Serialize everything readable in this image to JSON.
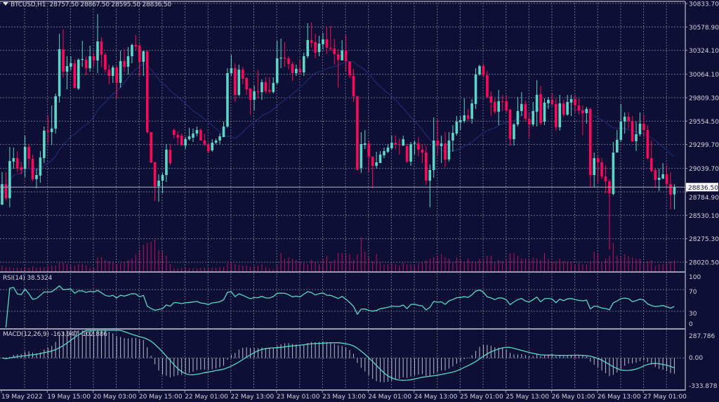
{
  "header": {
    "symbol": "BTCUSD,H1",
    "ohlc_text": "28757.50 28867.50 28595.50 28836.50"
  },
  "indicators": {
    "rsi_label": "RSI(14) 38.5324",
    "macd_label": "MACD(12,26,9) -163.947 -102.886"
  },
  "colors": {
    "background": "#0e0f35",
    "bull": "#5dd6c8",
    "bear": "#ff0a5a",
    "grid": "#6a6d8c",
    "volume": "#c0105a",
    "ma": "#1f2a70",
    "indicator_line": "#5dd6c8",
    "histogram": "#b8bccc",
    "border": "#9a9caf"
  },
  "chart_data": {
    "type": "candlestick",
    "symbol": "BTCUSD",
    "timeframe": "H1",
    "price_axis_ticks": [
      "30833.70",
      "30578.90",
      "30324.10",
      "30064.10",
      "29809.30",
      "29554.50",
      "29299.70",
      "29039.70",
      "28784.90",
      "28530.10",
      "28275.30",
      "28020.50"
    ],
    "current_price": "28836.50",
    "time_axis_labels": [
      "19 May 2022",
      "19 May 15:00",
      "20 May 03:00",
      "20 May 15:00",
      "22 May 01:00",
      "22 May 13:00",
      "23 May 01:00",
      "23 May 13:00",
      "24 May 01:00",
      "24 May 13:00",
      "25 May 01:00",
      "25 May 13:00",
      "26 May 01:00",
      "26 May 13:00",
      "27 May 01:00"
    ],
    "rsi_axis_ticks": [
      "100",
      "70",
      "30",
      "0"
    ],
    "rsi_levels": [
      70,
      30
    ],
    "macd_axis_ticks": [
      "287.786",
      "0.00",
      "-333.878"
    ],
    "macd_range": [
      -333.878,
      287.786
    ],
    "ohlc": [
      [
        28647,
        28999,
        28640,
        28869
      ],
      [
        28869,
        28999,
        28693,
        28716
      ],
      [
        28716,
        29274,
        28617,
        29121
      ],
      [
        29114,
        29267,
        29037,
        29152
      ],
      [
        29152,
        29228,
        28999,
        29037
      ],
      [
        29053,
        29114,
        28976,
        29022
      ],
      [
        29037,
        29397,
        28945,
        29274
      ],
      [
        29274,
        29305,
        29037,
        29144
      ],
      [
        29144,
        29190,
        28900,
        28923
      ],
      [
        28923,
        29037,
        28823,
        28968
      ],
      [
        28961,
        29228,
        28884,
        29159
      ],
      [
        29152,
        29496,
        29098,
        29450
      ],
      [
        29450,
        29611,
        29312,
        29442
      ],
      [
        29435,
        29725,
        29297,
        29473
      ],
      [
        29473,
        29855,
        29419,
        29825
      ],
      [
        29825,
        30505,
        29756,
        30337
      ],
      [
        30337,
        30551,
        30031,
        30092
      ],
      [
        30092,
        30260,
        29901,
        30153
      ],
      [
        30146,
        30260,
        30108,
        30184
      ],
      [
        30184,
        30222,
        29909,
        29916
      ],
      [
        29909,
        30237,
        29893,
        30222
      ],
      [
        30222,
        30429,
        30146,
        30230
      ],
      [
        30222,
        30260,
        30054,
        30130
      ],
      [
        30130,
        30375,
        30092,
        30260
      ],
      [
        30260,
        30299,
        30146,
        30215
      ],
      [
        30215,
        30719,
        30077,
        30421
      ],
      [
        30421,
        30467,
        30146,
        30276
      ],
      [
        30276,
        30299,
        30085,
        30115
      ],
      [
        30115,
        30169,
        29955,
        30046
      ],
      [
        30046,
        30161,
        29970,
        30138
      ],
      [
        30138,
        30153,
        29802,
        29970
      ],
      [
        29970,
        30322,
        29916,
        30207
      ],
      [
        30207,
        30337,
        30092,
        30146
      ],
      [
        30146,
        30360,
        30062,
        30260
      ],
      [
        30260,
        30398,
        30184,
        30383
      ],
      [
        30383,
        30490,
        30322,
        30367
      ],
      [
        30375,
        30398,
        30046,
        30199
      ],
      [
        30199,
        30322,
        30046,
        30314
      ],
      [
        30314,
        30322,
        29419,
        29435
      ],
      [
        29435,
        29435,
        29098,
        29106
      ],
      [
        29106,
        29114,
        28686,
        28846
      ],
      [
        28846,
        28976,
        28678,
        28907
      ],
      [
        28907,
        28991,
        28770,
        28968
      ],
      [
        28968,
        29305,
        28892,
        29244
      ],
      [
        29244,
        29305,
        29075,
        29098
      ],
      [
        29458,
        29473,
        29366,
        29404
      ],
      [
        29404,
        29442,
        29305,
        29374
      ],
      [
        29397,
        29419,
        29282,
        29297
      ],
      [
        29289,
        29381,
        29251,
        29358
      ],
      [
        29358,
        29481,
        29343,
        29389
      ],
      [
        29374,
        29473,
        29328,
        29419
      ],
      [
        29419,
        29496,
        29389,
        29458
      ],
      [
        29458,
        29473,
        29343,
        29343
      ],
      [
        29343,
        29419,
        29282,
        29305
      ],
      [
        29305,
        29320,
        29205,
        29228
      ],
      [
        29236,
        29358,
        29221,
        29320
      ],
      [
        29320,
        29366,
        29305,
        29343
      ],
      [
        29343,
        29419,
        29305,
        29389
      ],
      [
        29381,
        29549,
        29381,
        29496
      ],
      [
        29496,
        30130,
        29481,
        30077
      ],
      [
        30077,
        30276,
        30046,
        30130
      ],
      [
        30130,
        30184,
        29763,
        29840
      ],
      [
        29840,
        30169,
        29825,
        30115
      ],
      [
        30115,
        30146,
        29955,
        30016
      ],
      [
        30023,
        30031,
        29840,
        29901
      ],
      [
        29909,
        29916,
        29626,
        29786
      ],
      [
        29786,
        29939,
        29672,
        29878
      ],
      [
        29878,
        30108,
        29802,
        29870
      ],
      [
        29870,
        30008,
        29786,
        29978
      ],
      [
        29978,
        30031,
        29855,
        29878
      ],
      [
        29893,
        30031,
        29855,
        29878
      ],
      [
        29870,
        30031,
        29855,
        29970
      ],
      [
        29970,
        30429,
        29955,
        30237
      ],
      [
        30237,
        30452,
        30130,
        30245
      ],
      [
        30245,
        30413,
        30146,
        30237
      ],
      [
        30237,
        30260,
        30115,
        30176
      ],
      [
        30176,
        30199,
        29993,
        30077
      ],
      [
        30077,
        30169,
        30046,
        30123
      ],
      [
        30123,
        30222,
        30062,
        30085
      ],
      [
        30085,
        30299,
        30046,
        30260
      ],
      [
        30260,
        30620,
        30237,
        30436
      ],
      [
        30436,
        30627,
        30352,
        30406
      ],
      [
        30413,
        30505,
        30237,
        30299
      ],
      [
        30306,
        30482,
        30260,
        30398
      ],
      [
        30390,
        30513,
        30337,
        30444
      ],
      [
        30444,
        30581,
        30283,
        30352
      ],
      [
        30352,
        30589,
        30322,
        30345
      ],
      [
        30345,
        30452,
        30169,
        30283
      ],
      [
        30283,
        30337,
        29916,
        30222
      ],
      [
        30215,
        30436,
        30215,
        30322
      ],
      [
        30322,
        30490,
        30092,
        30207
      ],
      [
        30199,
        30207,
        30023,
        30054
      ],
      [
        30046,
        30123,
        29763,
        29825
      ],
      [
        29825,
        29832,
        29022,
        29022
      ],
      [
        29045,
        29435,
        28991,
        29305
      ],
      [
        29297,
        29458,
        29251,
        29312
      ],
      [
        29312,
        29343,
        28999,
        29167
      ],
      [
        29167,
        29175,
        28823,
        29068
      ],
      [
        29068,
        29221,
        29037,
        29106
      ],
      [
        29098,
        29228,
        29098,
        29190
      ],
      [
        29182,
        29267,
        29152,
        29228
      ],
      [
        29221,
        29305,
        29205,
        29267
      ],
      [
        29259,
        29397,
        29244,
        29320
      ],
      [
        29320,
        29397,
        29244,
        29305
      ],
      [
        29305,
        29366,
        29190,
        29297
      ],
      [
        29289,
        29397,
        29282,
        29358
      ],
      [
        29282,
        29305,
        29098,
        29114
      ],
      [
        29114,
        29328,
        29068,
        29305
      ],
      [
        29312,
        29343,
        29190,
        29320
      ],
      [
        29312,
        29381,
        29175,
        29244
      ],
      [
        29244,
        29305,
        29098,
        29213
      ],
      [
        29213,
        29282,
        28861,
        28907
      ],
      [
        28907,
        29083,
        28617,
        29022
      ],
      [
        29022,
        29595,
        28938,
        29343
      ],
      [
        29343,
        29572,
        29190,
        29289
      ],
      [
        29282,
        29397,
        29098,
        29312
      ],
      [
        29312,
        29435,
        29053,
        29137
      ],
      [
        29137,
        29435,
        29114,
        29343
      ],
      [
        29343,
        29511,
        29221,
        29427
      ],
      [
        29419,
        29611,
        29397,
        29549
      ],
      [
        29542,
        29611,
        29458,
        29565
      ],
      [
        29557,
        29802,
        29534,
        29618
      ],
      [
        29618,
        29687,
        29557,
        29580
      ],
      [
        29580,
        29794,
        29526,
        29748
      ],
      [
        29741,
        30130,
        29687,
        30062
      ],
      [
        30062,
        30169,
        30046,
        30153
      ],
      [
        30153,
        30176,
        30031,
        30054
      ],
      [
        30054,
        30100,
        29802,
        29817
      ],
      [
        29825,
        29878,
        29611,
        29756
      ],
      [
        29763,
        29802,
        29634,
        29657
      ],
      [
        29657,
        29893,
        29511,
        29771
      ],
      [
        29771,
        29840,
        29664,
        29763
      ],
      [
        29771,
        29840,
        29649,
        29672
      ],
      [
        29679,
        29687,
        29289,
        29358
      ],
      [
        29358,
        29534,
        29289,
        29519
      ],
      [
        29519,
        29817,
        29496,
        29664
      ],
      [
        29664,
        29870,
        29611,
        29741
      ],
      [
        29741,
        29779,
        29557,
        29580
      ],
      [
        29580,
        29649,
        29374,
        29519
      ],
      [
        29519,
        29763,
        29496,
        29664
      ],
      [
        29657,
        30000,
        29496,
        29840
      ],
      [
        29848,
        29939,
        29511,
        29534
      ],
      [
        29549,
        29802,
        29511,
        29756
      ],
      [
        29748,
        29817,
        29687,
        29786
      ],
      [
        29786,
        29855,
        29725,
        29741
      ],
      [
        29741,
        29802,
        29450,
        29488
      ],
      [
        29488,
        29840,
        29450,
        29748
      ],
      [
        29748,
        29786,
        29603,
        29626
      ],
      [
        29626,
        29840,
        29611,
        29763
      ],
      [
        29756,
        29840,
        29611,
        29794
      ],
      [
        29794,
        29840,
        29649,
        29725
      ],
      [
        29725,
        29802,
        29626,
        29672
      ],
      [
        29672,
        29725,
        29397,
        29641
      ],
      [
        29641,
        29710,
        29526,
        29687
      ],
      [
        29687,
        29702,
        28838,
        28968
      ],
      [
        28968,
        29213,
        28838,
        29152
      ],
      [
        29152,
        29175,
        28884,
        29106
      ],
      [
        29106,
        29152,
        28923,
        28953
      ],
      [
        28953,
        29075,
        28770,
        28900
      ],
      [
        28900,
        28923,
        28158,
        28770
      ],
      [
        28762,
        29328,
        28747,
        29213
      ],
      [
        29213,
        29458,
        29213,
        29351
      ],
      [
        29351,
        29741,
        29328,
        29549
      ],
      [
        29549,
        29649,
        29419,
        29603
      ],
      [
        29603,
        29649,
        29473,
        29557
      ],
      [
        29557,
        29611,
        29328,
        29335
      ],
      [
        29335,
        29549,
        29228,
        29412
      ],
      [
        29412,
        29649,
        29389,
        29526
      ],
      [
        29526,
        29626,
        29381,
        29458
      ],
      [
        29458,
        29511,
        29137,
        29152
      ],
      [
        29152,
        29343,
        28999,
        29014
      ],
      [
        29022,
        29037,
        28831,
        28915
      ],
      [
        28915,
        29037,
        28793,
        28938
      ],
      [
        28930,
        29098,
        28923,
        28976
      ],
      [
        28976,
        29075,
        28823,
        28869
      ],
      [
        28869,
        28999,
        28594,
        28754
      ],
      [
        28757.5,
        28867.5,
        28595.5,
        28836.5
      ]
    ],
    "volume_relative": [
      8,
      6,
      6,
      5,
      5,
      4,
      6,
      5,
      7,
      5,
      6,
      6,
      7,
      8,
      8,
      12,
      12,
      10,
      8,
      8,
      10,
      10,
      8,
      5,
      5,
      20,
      20,
      16,
      14,
      14,
      10,
      12,
      14,
      16,
      18,
      24,
      30,
      38,
      40,
      42,
      45,
      30,
      28,
      22,
      10,
      4,
      4,
      5,
      5,
      5,
      4,
      4,
      5,
      5,
      4,
      5,
      5,
      6,
      6,
      12,
      14,
      10,
      8,
      8,
      8,
      7,
      7,
      8,
      10,
      6,
      4,
      3,
      8,
      26,
      18,
      20,
      18,
      16,
      14,
      12,
      10,
      16,
      14,
      10,
      18,
      22,
      14,
      16,
      26,
      26,
      24,
      24,
      16,
      24,
      48,
      28,
      20,
      14,
      25,
      12,
      10,
      10,
      12,
      10,
      8,
      12,
      10,
      10,
      8,
      12,
      14,
      16,
      18,
      20,
      22,
      24,
      20,
      18,
      14,
      20,
      16,
      14,
      18,
      14,
      14,
      18,
      16,
      22,
      22,
      12,
      16,
      14,
      16,
      26,
      26,
      22,
      18,
      18,
      16,
      20,
      18,
      16,
      26,
      18,
      14,
      14,
      18,
      14,
      14,
      14,
      10,
      12,
      10,
      10,
      14,
      28,
      25,
      14,
      18,
      22,
      40,
      22,
      20,
      24,
      22,
      20,
      18,
      18,
      12,
      14,
      16,
      8,
      10,
      10,
      12,
      14,
      16
    ]
  }
}
